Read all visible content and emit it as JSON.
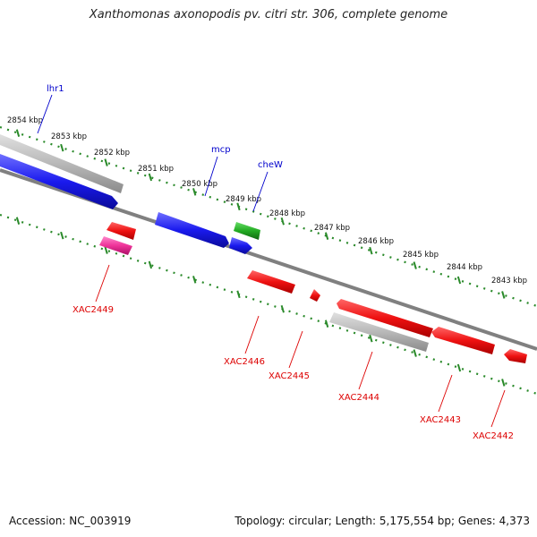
{
  "title": "Xanthomonas axonopodis pv. citri str. 306, complete genome",
  "accession_text": "Accession: NC_003919",
  "summary_text": "Topology: circular; Length: 5,175,554 bp; Genes: 4,373",
  "colors": {
    "backbone": "#808080",
    "tick_major": "#2a8a2a",
    "tick_minor": "#2a8a2a",
    "label_forward": "#0000cc",
    "label_reverse": "#dd0000",
    "gene_blue": "#1a1aee",
    "gene_green": "#22aa22",
    "gene_gray": "#b8b8b8",
    "gene_red": "#ee1111",
    "gene_magenta": "#ee3399"
  },
  "ruler_labels": [
    "2854 kbp",
    "2853 kbp",
    "2852 kbp",
    "2851 kbp",
    "2850 kbp",
    "2849 kbp",
    "2848 kbp",
    "2847 kbp",
    "2846 kbp",
    "2845 kbp",
    "2844 kbp",
    "2843 kbp"
  ],
  "forward_labels": [
    "lhr1",
    "mcp",
    "cheW"
  ],
  "reverse_labels": [
    "XAC2449",
    "XAC2446",
    "XAC2445",
    "XAC2444",
    "XAC2443",
    "XAC2442"
  ]
}
